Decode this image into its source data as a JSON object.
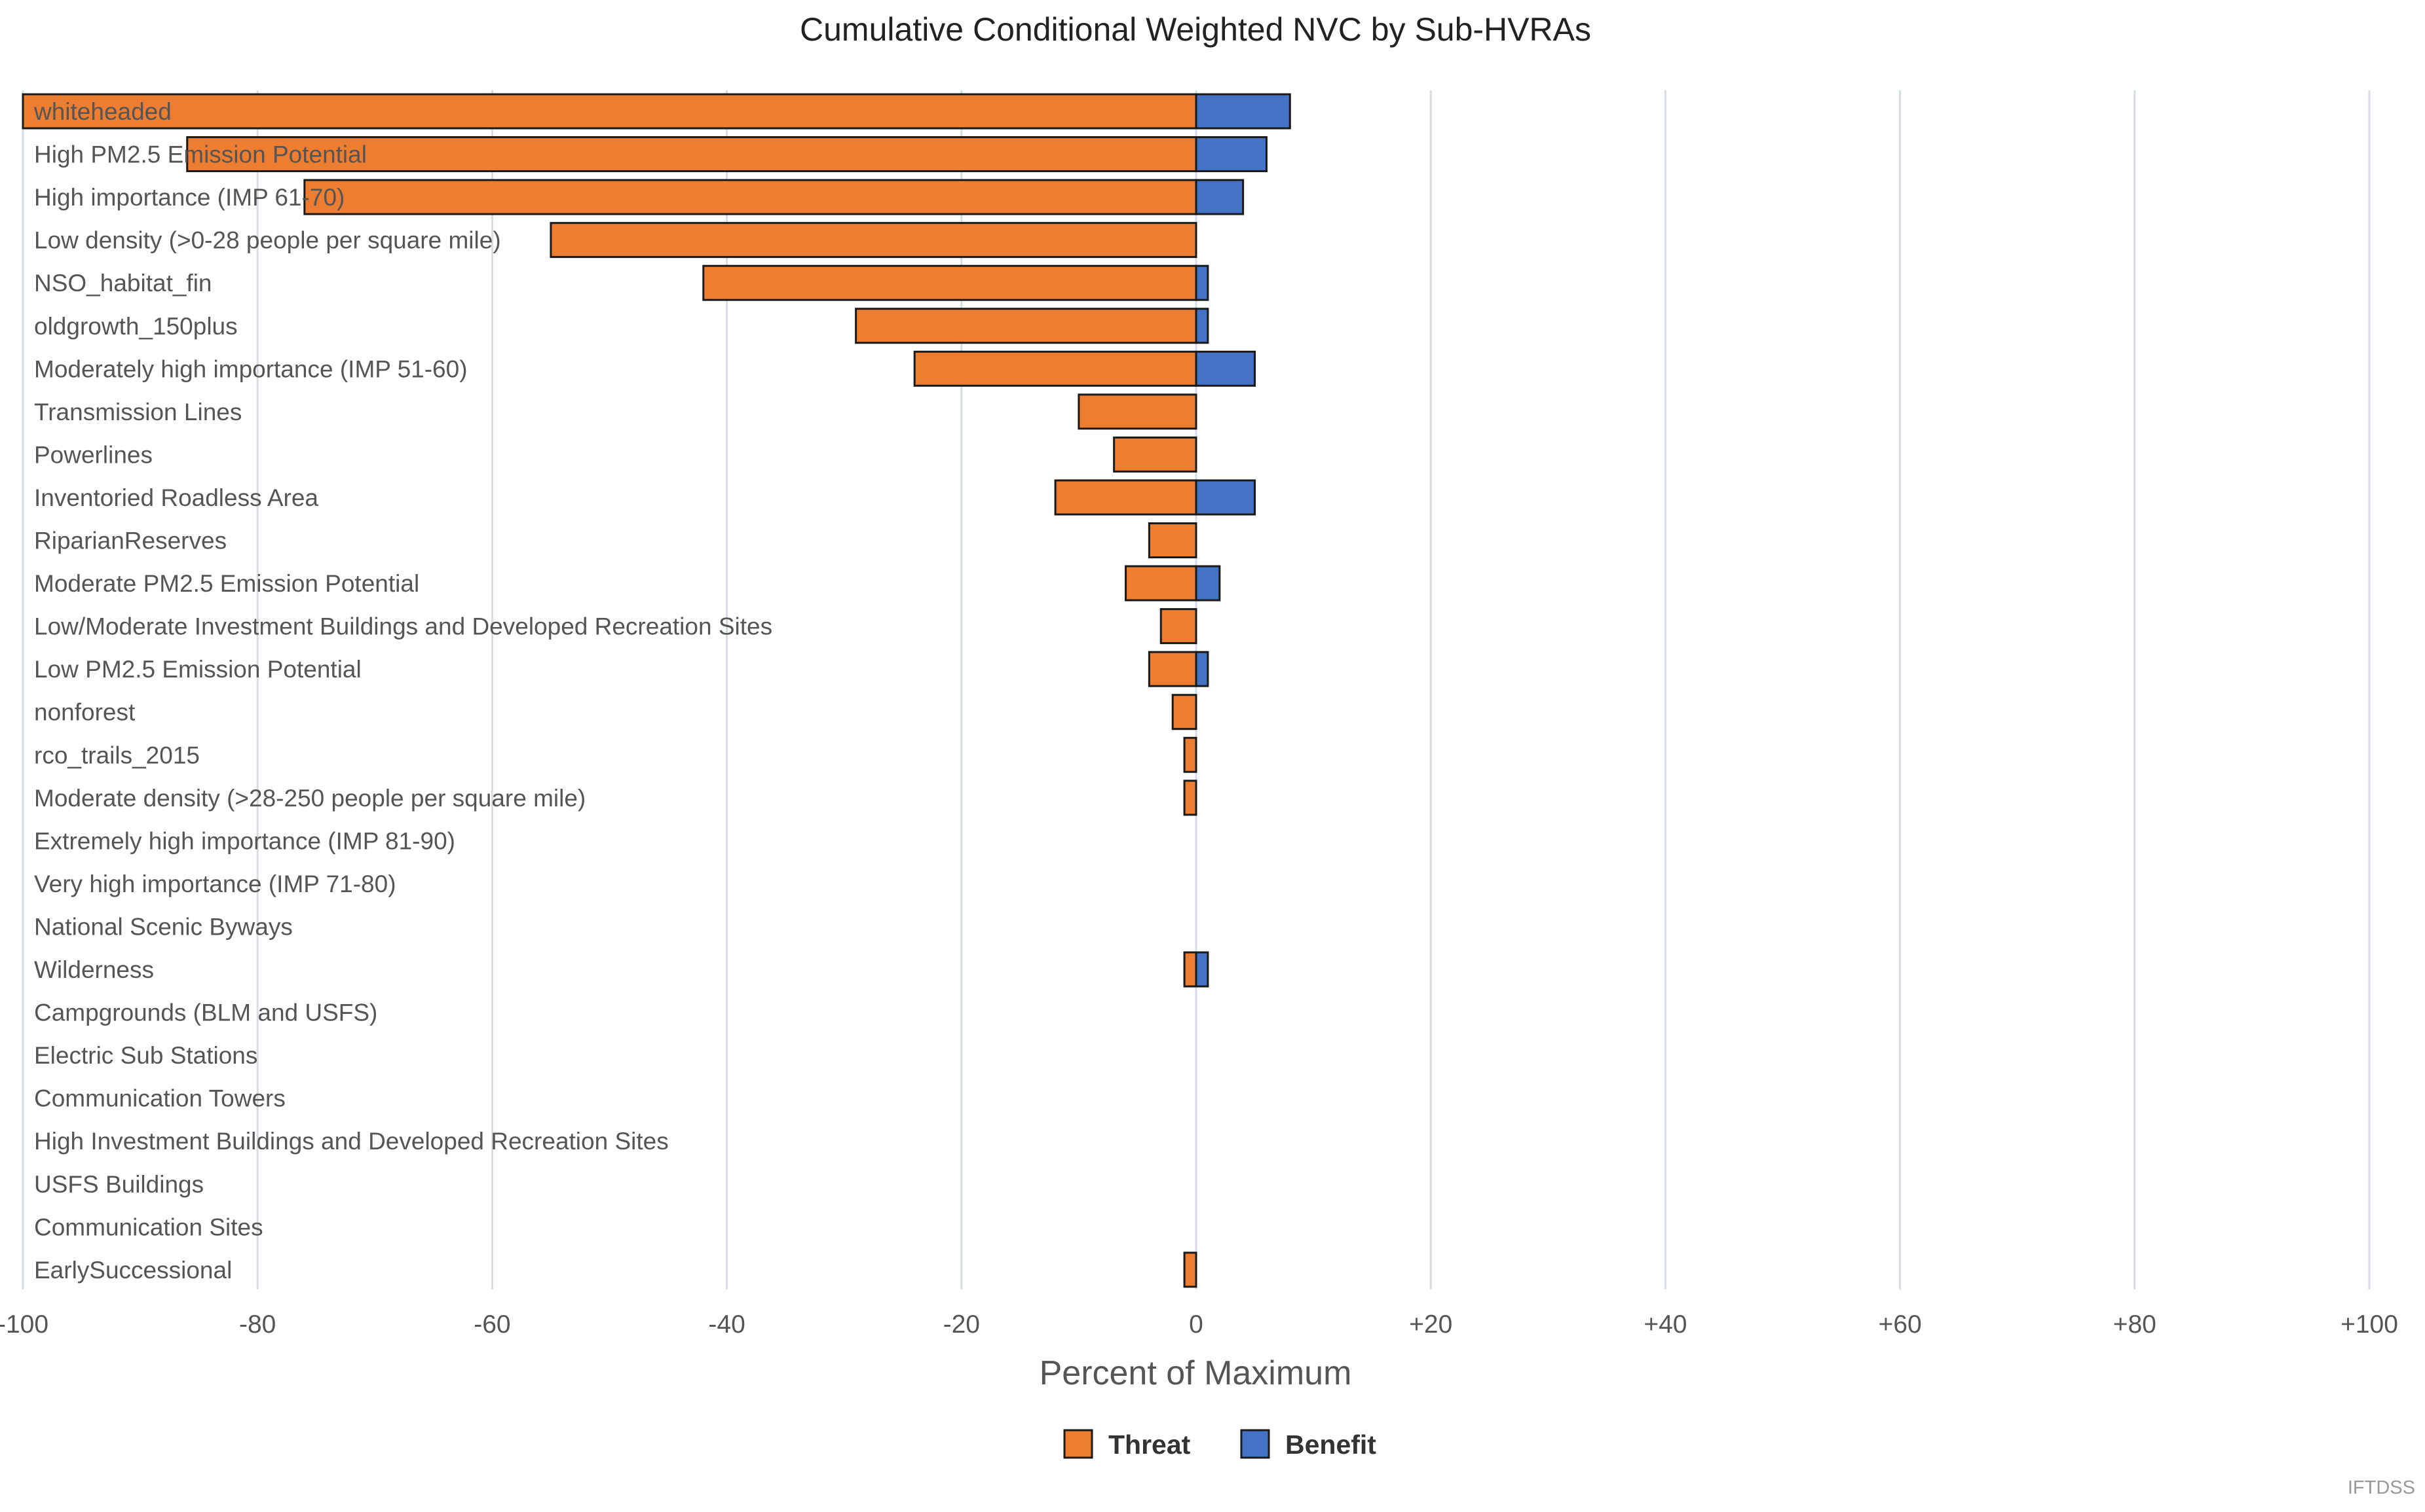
{
  "chart_data": {
    "type": "bar",
    "orientation": "horizontal",
    "stacked": true,
    "title": "Cumulative Conditional Weighted NVC by Sub-HVRAs",
    "xlabel": "Percent of Maximum",
    "ylabel": "",
    "xlim": [
      -100,
      100
    ],
    "x_ticks": [
      "-100",
      "-80",
      "-60",
      "-40",
      "-20",
      "0",
      "+20",
      "+40",
      "+60",
      "+80",
      "+100"
    ],
    "grid": "vertical",
    "legend_position": "bottom-center",
    "categories": [
      "whiteheaded",
      "High PM2.5 Emission Potential",
      "High importance (IMP 61-70)",
      "Low density (>0-28 people per square mile)",
      "NSO_habitat_fin",
      "oldgrowth_150plus",
      "Moderately high importance (IMP 51-60)",
      "Transmission Lines",
      "Powerlines",
      "Inventoried Roadless Area",
      "RiparianReserves",
      "Moderate PM2.5 Emission Potential",
      "Low/Moderate Investment Buildings and Developed Recreation Sites",
      "Low PM2.5 Emission Potential",
      "nonforest",
      "rco_trails_2015",
      "Moderate density (>28-250 people per square mile)",
      "Extremely high importance (IMP 81-90)",
      "Very high importance (IMP 71-80)",
      "National Scenic Byways",
      "Wilderness",
      "Campgrounds (BLM and USFS)",
      "Electric Sub Stations",
      "Communication Towers",
      "High Investment Buildings and Developed Recreation Sites",
      "USFS Buildings",
      "Communication Sites",
      "EarlySuccessional"
    ],
    "series": [
      {
        "name": "Threat",
        "color": "#ed7d31",
        "values": [
          -100,
          -86,
          -76,
          -55,
          -42,
          -29,
          -24,
          -10,
          -7,
          -12,
          -4,
          -6,
          -3,
          -4,
          -2,
          -1,
          -1,
          0,
          0,
          0,
          -1,
          0,
          0,
          0,
          0,
          0,
          0,
          -1
        ]
      },
      {
        "name": "Benefit",
        "color": "#4472c4",
        "values": [
          8,
          6,
          4,
          0,
          1,
          1,
          5,
          0,
          0,
          5,
          0,
          2,
          0,
          1,
          0,
          0,
          0,
          0,
          0,
          0,
          1,
          0,
          0,
          0,
          0,
          0,
          0,
          0
        ]
      }
    ]
  },
  "credit": "IFTDSS"
}
